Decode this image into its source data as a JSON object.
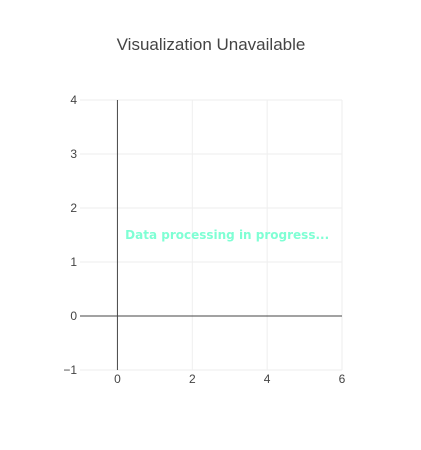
{
  "chart_data": {
    "type": "scatter",
    "title": "Visualization Unavailable",
    "xlabel": "",
    "ylabel": "",
    "xlim": [
      -1,
      6
    ],
    "ylim": [
      -1,
      4
    ],
    "x_ticks": [
      0,
      2,
      4,
      6
    ],
    "y_ticks": [
      -1,
      0,
      1,
      2,
      3,
      4
    ],
    "x_tick_labels": [
      "0",
      "2",
      "4",
      "6"
    ],
    "y_tick_labels": [
      "−1",
      "0",
      "1",
      "2",
      "3",
      "4"
    ],
    "grid": true,
    "series": [],
    "annotations": [
      {
        "text": "Data processing in progress...",
        "x": 0.1,
        "y": 1.5,
        "color": "#7fffd4"
      }
    ],
    "colors": {
      "grid": "#eeeeee",
      "zero_line": "#444444",
      "text": "#444444"
    }
  }
}
